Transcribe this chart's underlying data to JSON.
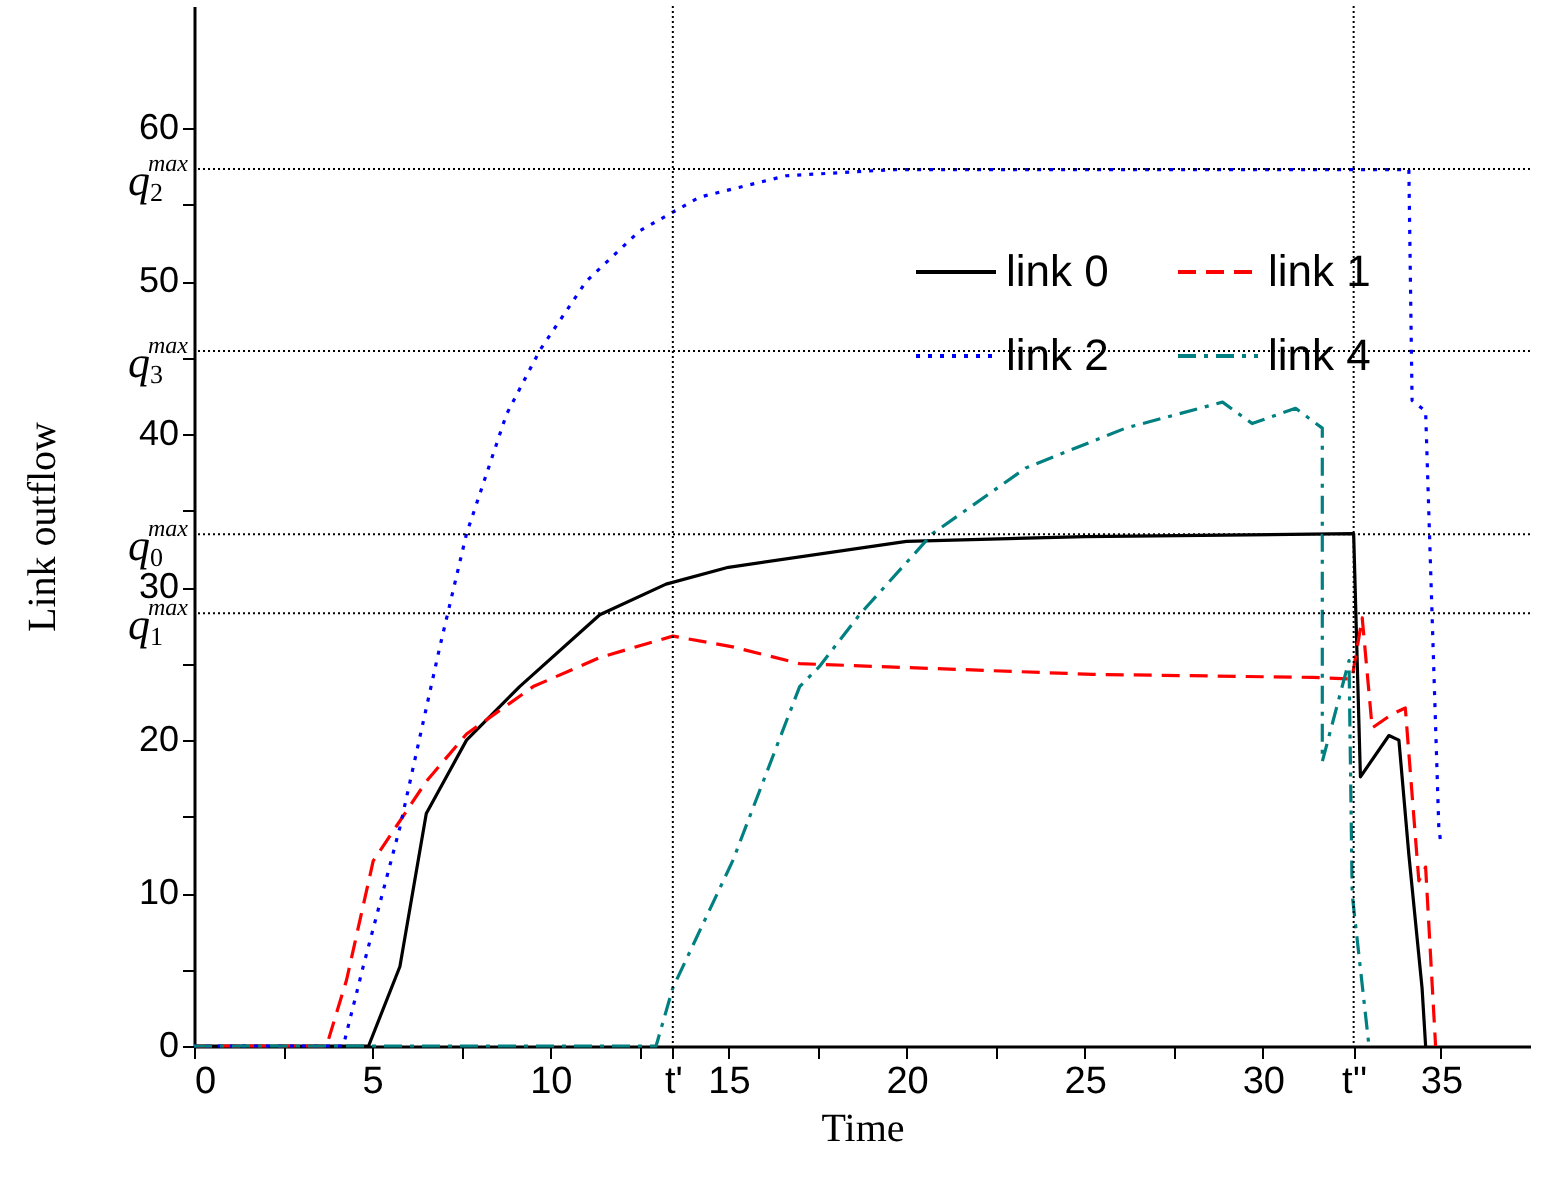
{
  "chart_data": {
    "type": "line",
    "xlabel": "Time",
    "ylabel": "Link outflow",
    "xlim": [
      0,
      37.5
    ],
    "ylim": [
      0,
      68
    ],
    "xticks": [
      0,
      {
        "value": 2.5,
        "label": null
      },
      5,
      {
        "value": 7.5,
        "label": null
      },
      10,
      {
        "value": 12.5,
        "label": null
      },
      {
        "value": 13.44,
        "label": "t'"
      },
      15,
      {
        "value": 17.5,
        "label": null
      },
      20,
      {
        "value": 22.5,
        "label": null
      },
      25,
      {
        "value": 27.5,
        "label": null
      },
      30,
      {
        "value": 32.55,
        "label": "t''"
      },
      35
    ],
    "yticks": [
      0,
      {
        "value": 5,
        "label": null
      },
      10,
      {
        "value": 15,
        "label": null
      },
      20,
      {
        "value": 25,
        "label": null
      },
      30,
      {
        "value": 35,
        "label": null
      },
      40,
      {
        "value": 45,
        "label": null
      },
      50,
      {
        "value": 55,
        "label": null
      },
      60
    ],
    "legend": "top right",
    "grid": false,
    "marker": "none",
    "ref_lines": [
      {
        "axis": "y",
        "value": 57.35,
        "label": "q$_{2}$$^{max}$",
        "color": "#000000",
        "line_style": "dotted"
      },
      {
        "axis": "y",
        "value": 45.45,
        "label": "q$_{3}$$^{max}$",
        "color": "#000000",
        "line_style": "dotted"
      },
      {
        "axis": "y",
        "value": 33.46,
        "label": "q$_{0}$$^{max}$",
        "color": "#000000",
        "line_style": "dotted"
      },
      {
        "axis": "y",
        "value": 28.3,
        "label": "q$_{1}$$^{max}$",
        "color": "#000000",
        "line_style": "dotted"
      },
      {
        "axis": "x",
        "value": 13.44,
        "label": null,
        "color": "#000000",
        "line_style": "dotted"
      },
      {
        "axis": "x",
        "value": 32.55,
        "label": null,
        "color": "#000000",
        "line_style": "dotted"
      }
    ],
    "series": [
      {
        "name": "link 0",
        "color": "#000000",
        "line_style": "solid",
        "x": [
          0,
          4.9,
          5.78,
          6.52,
          7.65,
          9.14,
          11.39,
          13.25,
          15,
          20,
          25,
          32.55,
          32.74,
          33.54,
          33.82,
          34.1,
          34.47,
          34.57
        ],
        "values": [
          0,
          0,
          5.2,
          15.2,
          20,
          23.5,
          28.2,
          30.2,
          31.3,
          33,
          33.3,
          33.5,
          17.6,
          20.3,
          20,
          12.5,
          3.8,
          0
        ]
      },
      {
        "name": "link 1",
        "color": "#ff0000",
        "line_style": "dashed",
        "x": [
          0,
          3.72,
          4.28,
          5.03,
          6.52,
          7.65,
          9.52,
          11.39,
          13.44,
          15.12,
          17,
          25.22,
          31.4,
          32.5,
          32.79,
          33.07,
          33.63,
          34,
          34.38,
          34.57,
          34.85
        ],
        "values": [
          0,
          0,
          4.3,
          12.1,
          17.3,
          20.4,
          23.5,
          25.4,
          26.8,
          26.1,
          25,
          24.3,
          24.1,
          24,
          28,
          20.8,
          21.7,
          22.1,
          10.8,
          11.7,
          0
        ]
      },
      {
        "name": "link 2",
        "color": "#0000ff",
        "line_style": "dotted",
        "x": [
          0,
          4.19,
          4.75,
          5.78,
          6.9,
          7.65,
          8.77,
          9.71,
          11.01,
          12.51,
          14.19,
          16.62,
          19.61,
          34.1,
          34.19,
          34.57,
          34.94,
          35
        ],
        "values": [
          0,
          0,
          5.2,
          14.3,
          26.1,
          33.5,
          41.3,
          45.5,
          50,
          53.3,
          55.5,
          56.9,
          57.3,
          57.3,
          42.2,
          41.5,
          14.3,
          13.2
        ]
      },
      {
        "name": "link 4",
        "color": "#008080",
        "line_style": "dashdot",
        "x": [
          0,
          12.97,
          13.44,
          15.12,
          17,
          17.55,
          18.68,
          20.73,
          23.35,
          26.15,
          28.87,
          29.7,
          30.92,
          31.67,
          31.67,
          32.42,
          32.51,
          32.98
        ],
        "values": [
          0,
          0,
          3.8,
          12.1,
          23.5,
          24.8,
          28.2,
          33.5,
          37.8,
          40.4,
          42.1,
          40.7,
          41.7,
          40.4,
          18.6,
          25.2,
          9.9,
          0
        ]
      }
    ]
  }
}
